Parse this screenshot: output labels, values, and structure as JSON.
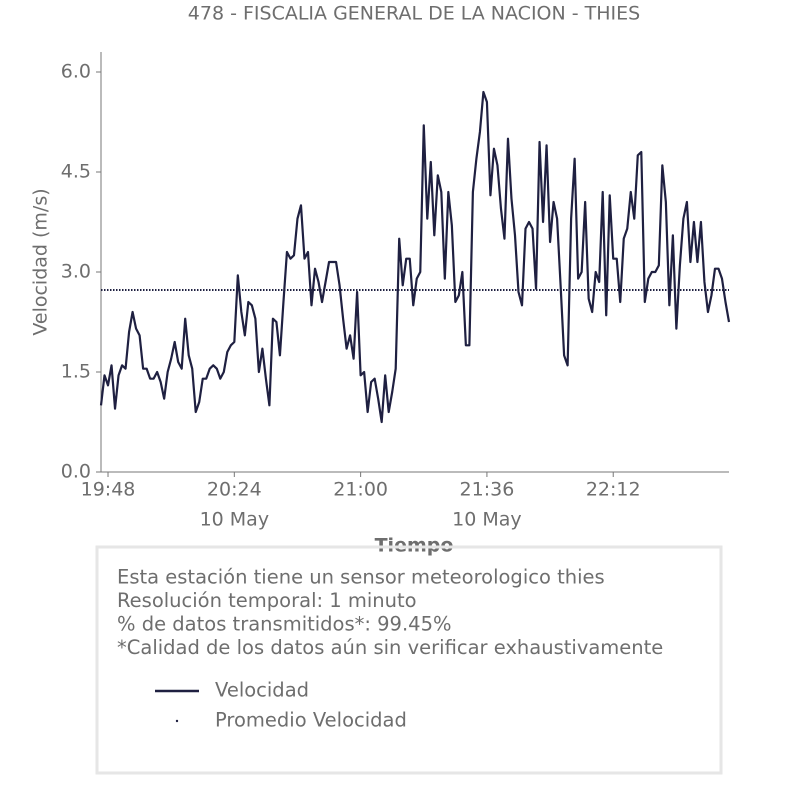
{
  "chart_data": {
    "type": "line",
    "title": "478 - FISCALIA GENERAL DE LA NACION - THIES",
    "ylabel": "Velocidad (m/s)",
    "xlabel": "Tiempo",
    "xlim": [
      "19:46",
      "22:45"
    ],
    "xticks": [
      "19:48",
      "20:24",
      "21:00",
      "21:36",
      "22:12"
    ],
    "date_labels": [
      {
        "at": "20:24",
        "label": "10 May"
      },
      {
        "at": "21:36",
        "label": "10 May"
      }
    ],
    "ylim": [
      0,
      6.3
    ],
    "yticks": [
      {
        "value": 0,
        "label": "0.0"
      },
      {
        "value": 1.5,
        "label": "1.5"
      },
      {
        "value": 3,
        "label": "3.0"
      },
      {
        "value": 4.5,
        "label": "4.5"
      },
      {
        "value": 6,
        "label": "6.0"
      }
    ],
    "x": [
      "19:46",
      "19:47",
      "19:48",
      "19:49",
      "19:50",
      "19:51",
      "19:52",
      "19:53",
      "19:54",
      "19:55",
      "19:56",
      "19:57",
      "19:58",
      "19:59",
      "20:00",
      "20:01",
      "20:02",
      "20:03",
      "20:04",
      "20:05",
      "20:06",
      "20:07",
      "20:08",
      "20:09",
      "20:10",
      "20:11",
      "20:12",
      "20:13",
      "20:14",
      "20:15",
      "20:16",
      "20:17",
      "20:18",
      "20:19",
      "20:20",
      "20:21",
      "20:22",
      "20:23",
      "20:24",
      "20:25",
      "20:26",
      "20:27",
      "20:28",
      "20:29",
      "20:30",
      "20:31",
      "20:32",
      "20:33",
      "20:34",
      "20:35",
      "20:36",
      "20:37",
      "20:38",
      "20:39",
      "20:40",
      "20:41",
      "20:42",
      "20:43",
      "20:44",
      "20:45",
      "20:46",
      "20:47",
      "20:48",
      "20:49",
      "20:50",
      "20:51",
      "20:52",
      "20:53",
      "20:54",
      "20:55",
      "20:56",
      "20:57",
      "20:58",
      "20:59",
      "21:00",
      "21:01",
      "21:02",
      "21:03",
      "21:04",
      "21:05",
      "21:06",
      "21:07",
      "21:08",
      "21:09",
      "21:10",
      "21:11",
      "21:12",
      "21:13",
      "21:14",
      "21:15",
      "21:16",
      "21:17",
      "21:18",
      "21:19",
      "21:20",
      "21:21",
      "21:22",
      "21:23",
      "21:24",
      "21:25",
      "21:26",
      "21:27",
      "21:28",
      "21:29",
      "21:30",
      "21:31",
      "21:32",
      "21:33",
      "21:34",
      "21:35",
      "21:36",
      "21:37",
      "21:38",
      "21:39",
      "21:40",
      "21:41",
      "21:42",
      "21:43",
      "21:44",
      "21:45",
      "21:46",
      "21:47",
      "21:48",
      "21:49",
      "21:50",
      "21:51",
      "21:52",
      "21:53",
      "21:54",
      "21:55",
      "21:56",
      "21:57",
      "21:58",
      "21:59",
      "22:00",
      "22:01",
      "22:02",
      "22:03",
      "22:04",
      "22:05",
      "22:06",
      "22:07",
      "22:08",
      "22:09",
      "22:10",
      "22:11",
      "22:12",
      "22:13",
      "22:14",
      "22:15",
      "22:16",
      "22:17",
      "22:18",
      "22:19",
      "22:20",
      "22:21",
      "22:22",
      "22:23",
      "22:24",
      "22:25",
      "22:26",
      "22:27",
      "22:28",
      "22:29",
      "22:30",
      "22:31",
      "22:32",
      "22:33",
      "22:34",
      "22:35",
      "22:36",
      "22:37",
      "22:38",
      "22:39",
      "22:40",
      "22:41",
      "22:42",
      "22:43",
      "22:44",
      "22:45"
    ],
    "series": [
      {
        "name": "Velocidad",
        "color": "#1f2041",
        "values": [
          1.0,
          1.45,
          1.3,
          1.6,
          0.95,
          1.45,
          1.6,
          1.55,
          2.1,
          2.4,
          2.15,
          2.05,
          1.55,
          1.55,
          1.4,
          1.4,
          1.5,
          1.35,
          1.1,
          1.5,
          1.7,
          1.95,
          1.65,
          1.55,
          2.3,
          1.75,
          1.55,
          0.9,
          1.05,
          1.4,
          1.4,
          1.55,
          1.6,
          1.55,
          1.4,
          1.5,
          1.8,
          1.9,
          1.95,
          2.95,
          2.4,
          2.05,
          2.55,
          2.5,
          2.3,
          1.5,
          1.85,
          1.4,
          1.0,
          2.3,
          2.25,
          1.75,
          2.55,
          3.3,
          3.2,
          3.25,
          3.8,
          4.0,
          3.2,
          3.3,
          2.5,
          3.05,
          2.85,
          2.55,
          2.85,
          3.15,
          3.15,
          3.15,
          2.8,
          2.3,
          1.85,
          2.05,
          1.7,
          2.7,
          1.45,
          1.5,
          0.9,
          1.35,
          1.4,
          1.1,
          0.75,
          1.45,
          0.9,
          1.2,
          1.55,
          3.5,
          2.8,
          3.2,
          3.2,
          2.5,
          2.9,
          3.0,
          5.2,
          3.8,
          4.65,
          3.55,
          4.45,
          4.2,
          2.9,
          4.2,
          3.7,
          2.55,
          2.65,
          3.0,
          1.9,
          1.9,
          4.2,
          4.7,
          5.1,
          5.7,
          5.55,
          4.15,
          4.85,
          4.6,
          3.95,
          3.5,
          5.0,
          4.1,
          3.55,
          2.7,
          2.5,
          3.65,
          3.75,
          3.65,
          2.75,
          4.95,
          3.75,
          4.9,
          3.45,
          4.05,
          3.8,
          2.8,
          1.75,
          1.6,
          3.8,
          4.7,
          2.9,
          3.0,
          4.05,
          2.6,
          2.4,
          3.0,
          2.85,
          4.2,
          2.35,
          4.15,
          3.2,
          3.2,
          2.55,
          3.5,
          3.65,
          4.2,
          3.8,
          4.75,
          4.8,
          2.55,
          2.9,
          3.0,
          3.0,
          3.1,
          4.6,
          4.05,
          2.5,
          3.55,
          2.15,
          3.1,
          3.8,
          4.05,
          3.15,
          3.75,
          3.15,
          3.75,
          2.85,
          2.4,
          2.65,
          3.05,
          3.05,
          2.9,
          2.55,
          2.25
        ]
      }
    ],
    "reference_lines": [
      {
        "name": "Promedio Velocidad",
        "value": 2.73,
        "color": "#1f2041",
        "style": "dotted"
      }
    ],
    "info": [
      "Esta estación tiene un sensor meteorologico thies",
      "Resolución temporal: 1 minuto",
      "% de datos transmitidos*: 99.45%",
      "*Calidad de los datos aún sin verificar exhaustivamente"
    ]
  }
}
